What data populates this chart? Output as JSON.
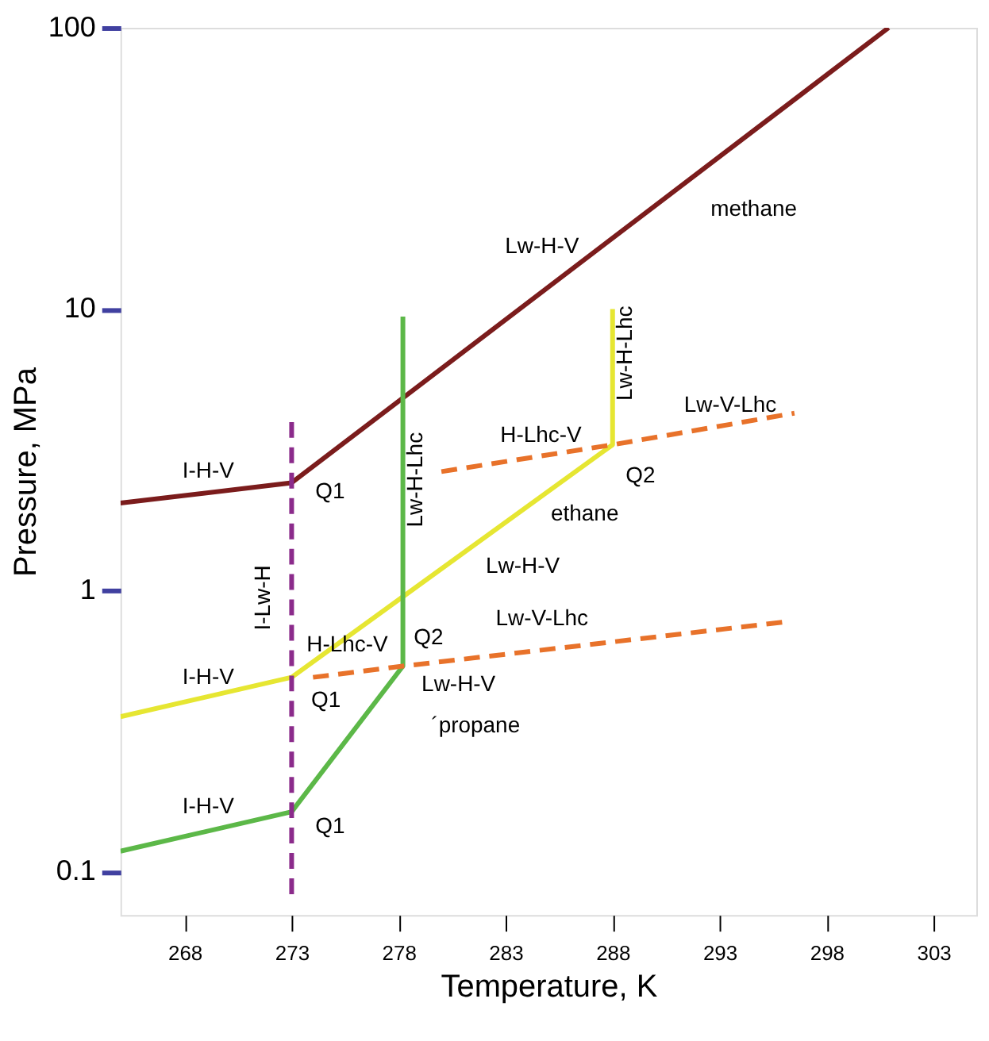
{
  "chart_data": {
    "type": "line",
    "xlabel": "Temperature, K",
    "ylabel": "Pressure, MPa",
    "xlim": [
      265,
      305
    ],
    "xticks": [
      268,
      273,
      278,
      283,
      288,
      293,
      298,
      303
    ],
    "ylim": [
      0.07,
      100
    ],
    "yticks": [
      0.1,
      1,
      10,
      100
    ],
    "log": true,
    "grid": false,
    "legend": false,
    "series": [
      {
        "color": "#7b1c1c",
        "line_style": "solid",
        "x": [
          265,
          273,
          300.9
        ],
        "values": [
          2.04,
          2.41,
          100
        ]
      },
      {
        "color": "#e6e632",
        "line_style": "solid",
        "x": [
          265,
          273,
          288,
          288
        ],
        "values": [
          0.355,
          0.49,
          3.29,
          10
        ]
      },
      {
        "color": "#5cb848",
        "line_style": "solid",
        "x": [
          265,
          273,
          278.2,
          278.2
        ],
        "values": [
          0.118,
          0.163,
          0.537,
          9.4
        ]
      },
      {
        "color": "#e8722a",
        "line_style": "dashed",
        "x": [
          274,
          278.2,
          296
        ],
        "values": [
          0.49,
          0.537,
          0.77
        ]
      },
      {
        "color": "#e8722a",
        "line_style": "dashed",
        "x": [
          280,
          288,
          296.5
        ],
        "values": [
          2.64,
          3.29,
          4.26
        ]
      },
      {
        "color": "#8b2b8b",
        "line_style": "dashed",
        "x": [
          273,
          273
        ],
        "values": [
          0.083,
          4.04
        ]
      }
    ],
    "annotations": [
      "methane",
      "ethane",
      "´propane",
      "Lw-H-V",
      "I-H-V",
      "Q1",
      "Lw-H-Lhc",
      "H-Lhc-V",
      "Lw-H-Lhc",
      "Lw-V-Lhc",
      "Q2",
      "Lw-H-V",
      "I-Lw-H",
      "I-H-V",
      "H-Lhc-V",
      "Q1",
      "Q2",
      "Lw-V-Lhc",
      "Lw-H-V",
      "I-H-V",
      "Q1"
    ]
  }
}
